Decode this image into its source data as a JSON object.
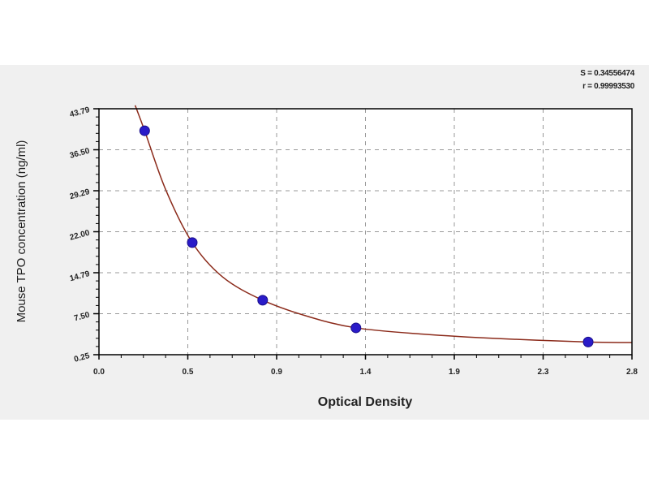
{
  "chart_data": {
    "type": "scatter",
    "title": "",
    "xlabel": "Optical Density",
    "ylabel": "Mouse TPO  concentration (ng/ml)",
    "xlim": [
      0,
      2.8
    ],
    "ylim": [
      0.25,
      43.79
    ],
    "x_tick_labels": [
      "0.0",
      "0.5",
      "0.9",
      "1.4",
      "1.9",
      "2.3",
      "2.8"
    ],
    "y_tick_labels": [
      "0.25",
      "7.50",
      "14.79",
      "22.00",
      "29.29",
      "36.50",
      "43.79"
    ],
    "grid": true,
    "grid_style": "dashed",
    "points": [
      {
        "x": 0.24,
        "y": 39.9
      },
      {
        "x": 0.49,
        "y": 20.1
      },
      {
        "x": 0.86,
        "y": 9.9
      },
      {
        "x": 1.35,
        "y": 5.0
      },
      {
        "x": 2.57,
        "y": 2.5
      }
    ],
    "fit_curve": [
      {
        "x": 0.19,
        "y": 44.4
      },
      {
        "x": 0.24,
        "y": 39.9
      },
      {
        "x": 0.35,
        "y": 29.5
      },
      {
        "x": 0.49,
        "y": 20.1
      },
      {
        "x": 0.65,
        "y": 14.0
      },
      {
        "x": 0.86,
        "y": 9.9
      },
      {
        "x": 1.1,
        "y": 7.0
      },
      {
        "x": 1.35,
        "y": 5.0
      },
      {
        "x": 1.7,
        "y": 3.9
      },
      {
        "x": 2.1,
        "y": 3.1
      },
      {
        "x": 2.57,
        "y": 2.5
      },
      {
        "x": 2.8,
        "y": 2.4
      }
    ],
    "point_color": "#2a1bc8",
    "curve_color": "#8b2a1a",
    "stats": {
      "s": "S = 0.34556474",
      "r": "r = 0.99993530"
    }
  }
}
